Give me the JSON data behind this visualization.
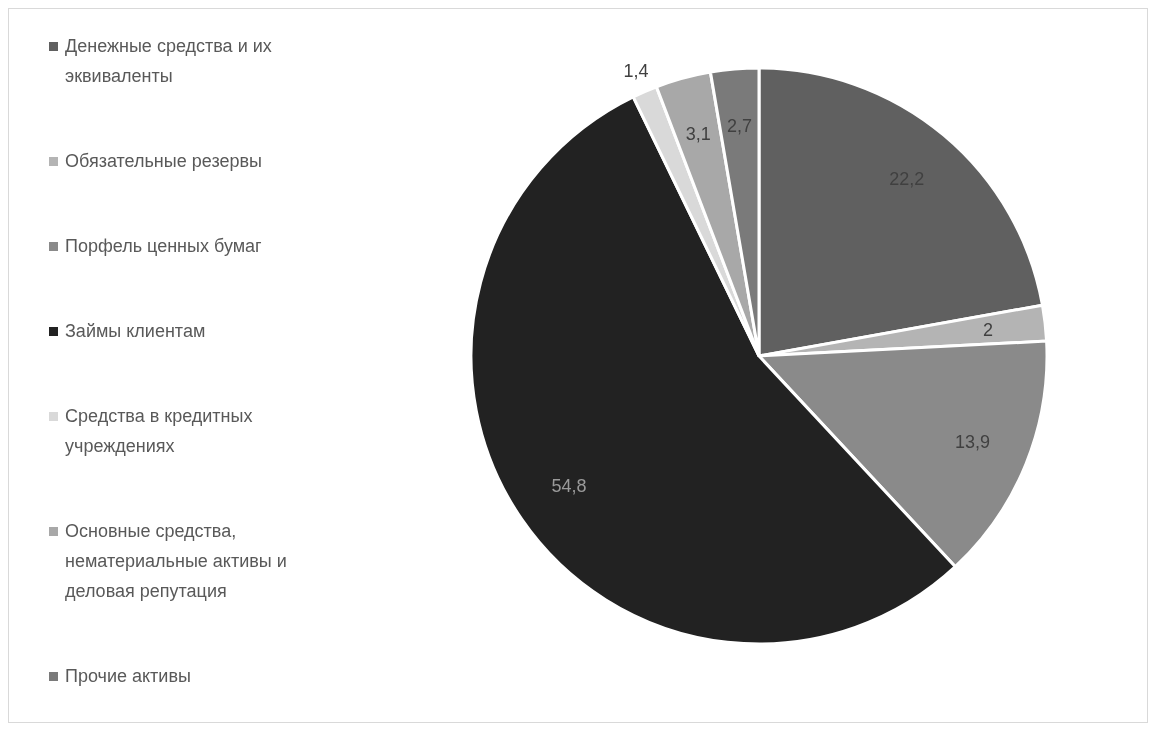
{
  "chart_data": {
    "type": "pie",
    "categories": [
      "Денежные средства и их эквиваленты",
      "Обязательные резервы",
      "Порфель ценных бумаг",
      "Займы клиентам",
      "Средства в кредитных учреждениях",
      "Основные средства, нематериальные активы и деловая репутация",
      "Прочие активы"
    ],
    "values": [
      22.2,
      2,
      13.9,
      54.8,
      1.4,
      3.1,
      2.7
    ],
    "value_labels": [
      "22,2",
      "2",
      "13,9",
      "54,8",
      "1,4",
      "3,1",
      "2,7"
    ],
    "colors": [
      "#606060",
      "#b4b4b4",
      "#8a8a8a",
      "#222222",
      "#d9d9d9",
      "#a8a8a8",
      "#7a7a7a"
    ],
    "legend": "left"
  }
}
